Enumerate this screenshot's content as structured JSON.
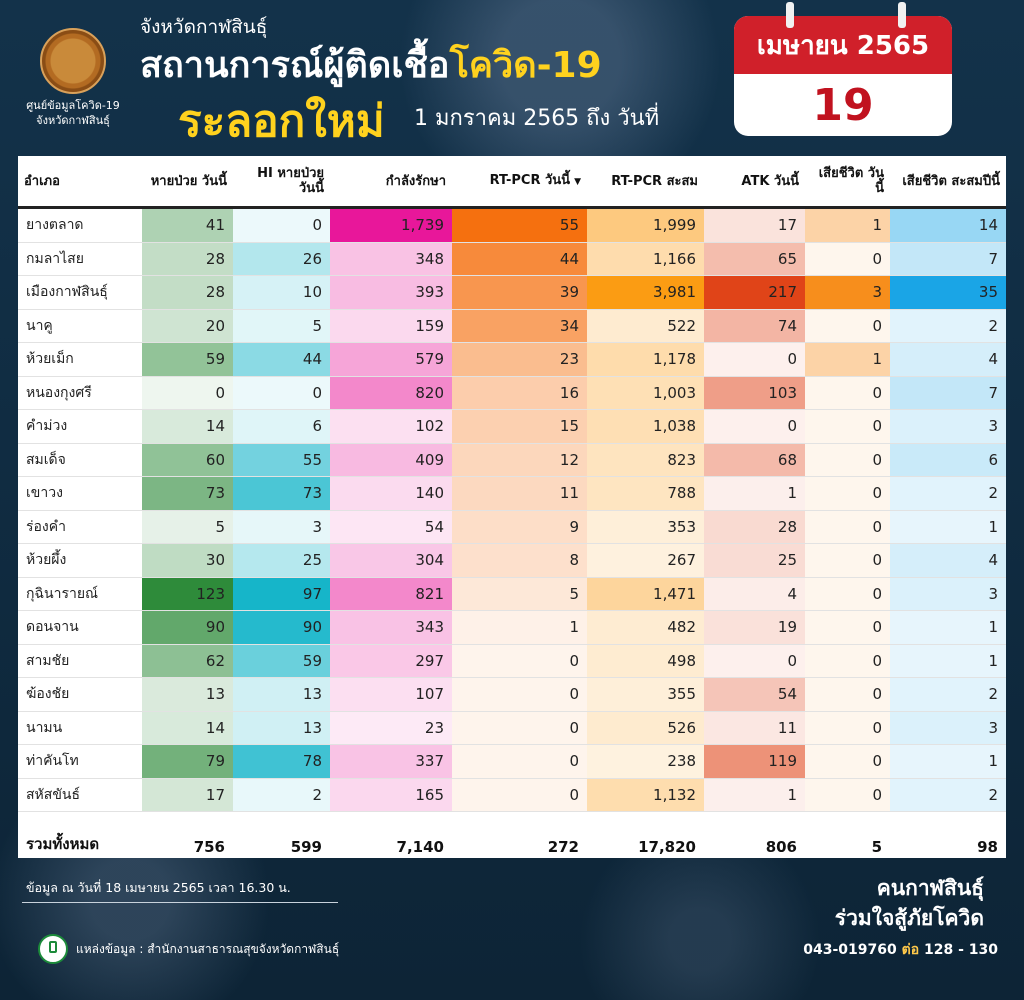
{
  "header": {
    "logo_caption_1": "ศูนย์ข้อมูลโควิด-19",
    "logo_caption_2": "จังหวัดกาฬสินธุ์",
    "province": "จังหวัดกาฬสินธุ์",
    "title_part1": "สถานการณ์ผู้ติดเชื้อ",
    "title_part2": "โควิด-19",
    "subtitle": "ระลอกใหม่",
    "date_range": "1 มกราคม 2565 ถึง วันที่"
  },
  "calendar": {
    "month_year": "เมษายน 2565",
    "day": "19"
  },
  "table": {
    "columns": [
      "อำเภอ",
      "หายป่วย วันนี้",
      "HI หายป่วย วันนี้",
      "กำลังรักษา",
      "RT-PCR วันนี้",
      "RT-PCR สะสม",
      "ATK วันนี้",
      "เสียชีวิต วันนี้",
      "เสียชีวิต สะสมปีนี้"
    ],
    "rows": [
      [
        "ยางตลาด",
        "41",
        "0",
        "1,739",
        "55",
        "1,999",
        "17",
        "1",
        "14"
      ],
      [
        "กมลาไสย",
        "28",
        "26",
        "348",
        "44",
        "1,166",
        "65",
        "0",
        "7"
      ],
      [
        "เมืองกาฬสินธุ์",
        "28",
        "10",
        "393",
        "39",
        "3,981",
        "217",
        "3",
        "35"
      ],
      [
        "นาคู",
        "20",
        "5",
        "159",
        "34",
        "522",
        "74",
        "0",
        "2"
      ],
      [
        "ห้วยเม็ก",
        "59",
        "44",
        "579",
        "23",
        "1,178",
        "0",
        "1",
        "4"
      ],
      [
        "หนองกุงศรี",
        "0",
        "0",
        "820",
        "16",
        "1,003",
        "103",
        "0",
        "7"
      ],
      [
        "คำม่วง",
        "14",
        "6",
        "102",
        "15",
        "1,038",
        "0",
        "0",
        "3"
      ],
      [
        "สมเด็จ",
        "60",
        "55",
        "409",
        "12",
        "823",
        "68",
        "0",
        "6"
      ],
      [
        "เขาวง",
        "73",
        "73",
        "140",
        "11",
        "788",
        "1",
        "0",
        "2"
      ],
      [
        "ร่องคำ",
        "5",
        "3",
        "54",
        "9",
        "353",
        "28",
        "0",
        "1"
      ],
      [
        "ห้วยผึ้ง",
        "30",
        "25",
        "304",
        "8",
        "267",
        "25",
        "0",
        "4"
      ],
      [
        "กุฉินารายณ์",
        "123",
        "97",
        "821",
        "5",
        "1,471",
        "4",
        "0",
        "3"
      ],
      [
        "ดอนจาน",
        "90",
        "90",
        "343",
        "1",
        "482",
        "19",
        "0",
        "1"
      ],
      [
        "สามชัย",
        "62",
        "59",
        "297",
        "0",
        "498",
        "0",
        "0",
        "1"
      ],
      [
        "ฆ้องชัย",
        "13",
        "13",
        "107",
        "0",
        "355",
        "54",
        "0",
        "2"
      ],
      [
        "นามน",
        "14",
        "13",
        "23",
        "0",
        "526",
        "11",
        "0",
        "3"
      ],
      [
        "ท่าคันโท",
        "79",
        "78",
        "337",
        "0",
        "238",
        "119",
        "0",
        "1"
      ],
      [
        "สหัสขันธ์",
        "17",
        "2",
        "165",
        "0",
        "1,132",
        "1",
        "0",
        "2"
      ]
    ],
    "totals": [
      "รวมทั้งหมด",
      "756",
      "599",
      "7,140",
      "272",
      "17,820",
      "806",
      "5",
      "98"
    ],
    "scale_max": [
      123,
      97,
      1739,
      55,
      3981,
      217,
      3,
      35
    ],
    "colors": [
      "#2e8b3a",
      "#16b5c9",
      "#e8179a",
      "#f5700f",
      "#fb9c13",
      "#e04418",
      "#f78e1c",
      "#1aa5e6"
    ]
  },
  "footer": {
    "note": "ข้อมูล ณ วันที่ 18 เมษายน 2565 เวลา 16.30 น.",
    "source": "แหล่งข้อมูล : สำนักงานสาธารณสุขจังหวัดกาฬสินธุ์",
    "slogan1": "คนกาฬสินธุ์",
    "slogan2": "ร่วมใจสู้ภัยโควิด",
    "phone": "043-019760",
    "ext_label": "ต่อ",
    "ext": "128 - 130"
  }
}
